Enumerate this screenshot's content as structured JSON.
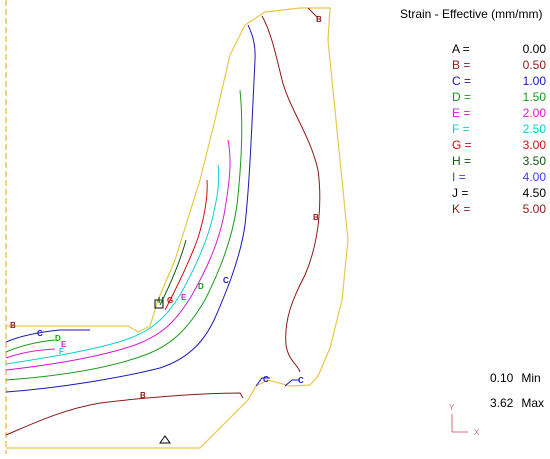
{
  "legend": {
    "title": "Strain - Effective (mm/mm)",
    "items": [
      {
        "key": "A =",
        "value": "0.00",
        "color": "#000000"
      },
      {
        "key": "B =",
        "value": "0.50",
        "color": "#8b1a1a"
      },
      {
        "key": "C =",
        "value": "1.00",
        "color": "#1a1ab4"
      },
      {
        "key": "D =",
        "value": "1.50",
        "color": "#1a9a1a"
      },
      {
        "key": "E =",
        "value": "2.00",
        "color": "#d020d0"
      },
      {
        "key": "F =",
        "value": "2.50",
        "color": "#10d0d0"
      },
      {
        "key": "G =",
        "value": "3.00",
        "color": "#d01010"
      },
      {
        "key": "H =",
        "value": "3.50",
        "color": "#105a10"
      },
      {
        "key": "I =",
        "value": "4.00",
        "color": "#3c3cff"
      },
      {
        "key": "J =",
        "value": "4.50",
        "color": "#000000"
      },
      {
        "key": "K =",
        "value": "5.00",
        "color": "#8b1a1a"
      }
    ]
  },
  "range": {
    "min_value": "0.10",
    "min_label": "Min",
    "max_value": "3.62",
    "max_label": "Max"
  },
  "axes": {
    "y_label": "Y",
    "x_label": "X"
  },
  "contour_labels": {
    "b": "B",
    "c": "C",
    "d": "D",
    "e": "E",
    "f": "F",
    "g": "G",
    "h": "H"
  },
  "colors": {
    "outline": "#e8c84a",
    "symmetry_axis": "#e8a020",
    "contour_b": "#8b1a1a",
    "contour_c": "#1a1ab4",
    "contour_d": "#1a9a1a",
    "contour_e": "#d020d0",
    "contour_f": "#10d0d0",
    "contour_g": "#d01010",
    "contour_h": "#105a10",
    "triad": "#e06c7a"
  }
}
